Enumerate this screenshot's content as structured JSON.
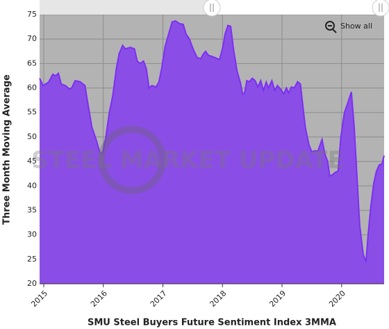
{
  "chart_data": {
    "type": "area",
    "x_title": "SMU Steel Buyers Future Sentiment Index 3MMA",
    "y_title": "Three Month Moving Average",
    "watermark": "STEEL MARKET UPDATE",
    "button": "Show all",
    "color": "#8a4ee6",
    "line_color": "#7b2ff2",
    "plot_background": "#b3b3b3",
    "grid": true,
    "x": [
      2014.93,
      2014.988,
      2015.082,
      2015.152,
      2015.199,
      2015.246,
      2015.293,
      2015.363,
      2015.433,
      2015.468,
      2015.527,
      2015.609,
      2015.691,
      2015.738,
      2015.808,
      2015.878,
      2015.937,
      2015.984,
      2016.042,
      2016.101,
      2016.159,
      2016.218,
      2016.265,
      2016.323,
      2016.37,
      2016.452,
      2016.522,
      2016.569,
      2016.616,
      2016.674,
      2016.721,
      2016.768,
      2016.815,
      2016.885,
      2016.932,
      2016.979,
      2017.037,
      2017.096,
      2017.155,
      2017.213,
      2017.272,
      2017.342,
      2017.389,
      2017.447,
      2017.506,
      2017.576,
      2017.635,
      2017.681,
      2017.717,
      2017.763,
      2017.834,
      2017.916,
      2017.951,
      2018.009,
      2018.044,
      2018.091,
      2018.138,
      2018.185,
      2018.244,
      2018.302,
      2018.337,
      2018.372,
      2018.407,
      2018.454,
      2018.501,
      2018.548,
      2018.595,
      2018.642,
      2018.689,
      2018.735,
      2018.77,
      2018.829,
      2018.876,
      2018.923,
      2018.981,
      2019.028,
      2019.075,
      2019.11,
      2019.157,
      2019.204,
      2019.262,
      2019.309,
      2019.344,
      2019.391,
      2019.45,
      2019.496,
      2019.555,
      2019.602,
      2019.672,
      2019.719,
      2019.766,
      2019.801,
      2019.848,
      2019.895,
      2019.941,
      2019.988,
      2020.047,
      2020.105,
      2020.164,
      2020.211,
      2020.258,
      2020.304,
      2020.363,
      2020.41,
      2020.445,
      2020.492,
      2020.539,
      2020.585,
      2020.632,
      2020.679,
      2020.714
    ],
    "values": [
      62,
      60.5,
      61.2,
      62.8,
      62.5,
      63,
      60.8,
      60.5,
      59.8,
      60,
      61.5,
      61.3,
      60.5,
      57,
      52,
      49.5,
      47,
      46.5,
      50,
      55,
      58.5,
      64,
      67,
      68.7,
      68,
      68.3,
      68,
      65.5,
      65,
      65.5,
      64,
      60,
      60.5,
      60.2,
      61.2,
      64,
      68.5,
      71,
      73.5,
      73.7,
      73.2,
      73,
      71,
      70,
      68,
      66.2,
      66,
      67,
      67.5,
      66.7,
      66.4,
      66,
      65.8,
      68.5,
      71,
      72.8,
      72.6,
      68,
      63.5,
      61,
      58.8,
      59,
      61.5,
      61.3,
      62,
      61.5,
      60.2,
      61.5,
      59.5,
      61.2,
      60,
      61.5,
      59.5,
      60.5,
      59.7,
      58.8,
      60,
      59,
      60.2,
      60,
      61.3,
      60.8,
      57,
      52,
      48.5,
      47,
      47.2,
      47.1,
      49.5,
      46.5,
      45,
      42,
      42.3,
      42.8,
      43,
      50,
      55,
      57,
      59.2,
      52,
      42,
      32,
      26,
      24.5,
      30,
      36,
      40.5,
      43,
      44.3,
      44.5,
      46.2
    ],
    "xlim": [
      2014.93,
      2020.714
    ],
    "xticks": [
      2015,
      2016,
      2017,
      2018,
      2019,
      2020
    ],
    "ylim": [
      20,
      75
    ],
    "yticks": [
      20,
      25,
      30,
      35,
      40,
      45,
      50,
      55,
      60,
      65,
      70,
      75
    ]
  }
}
